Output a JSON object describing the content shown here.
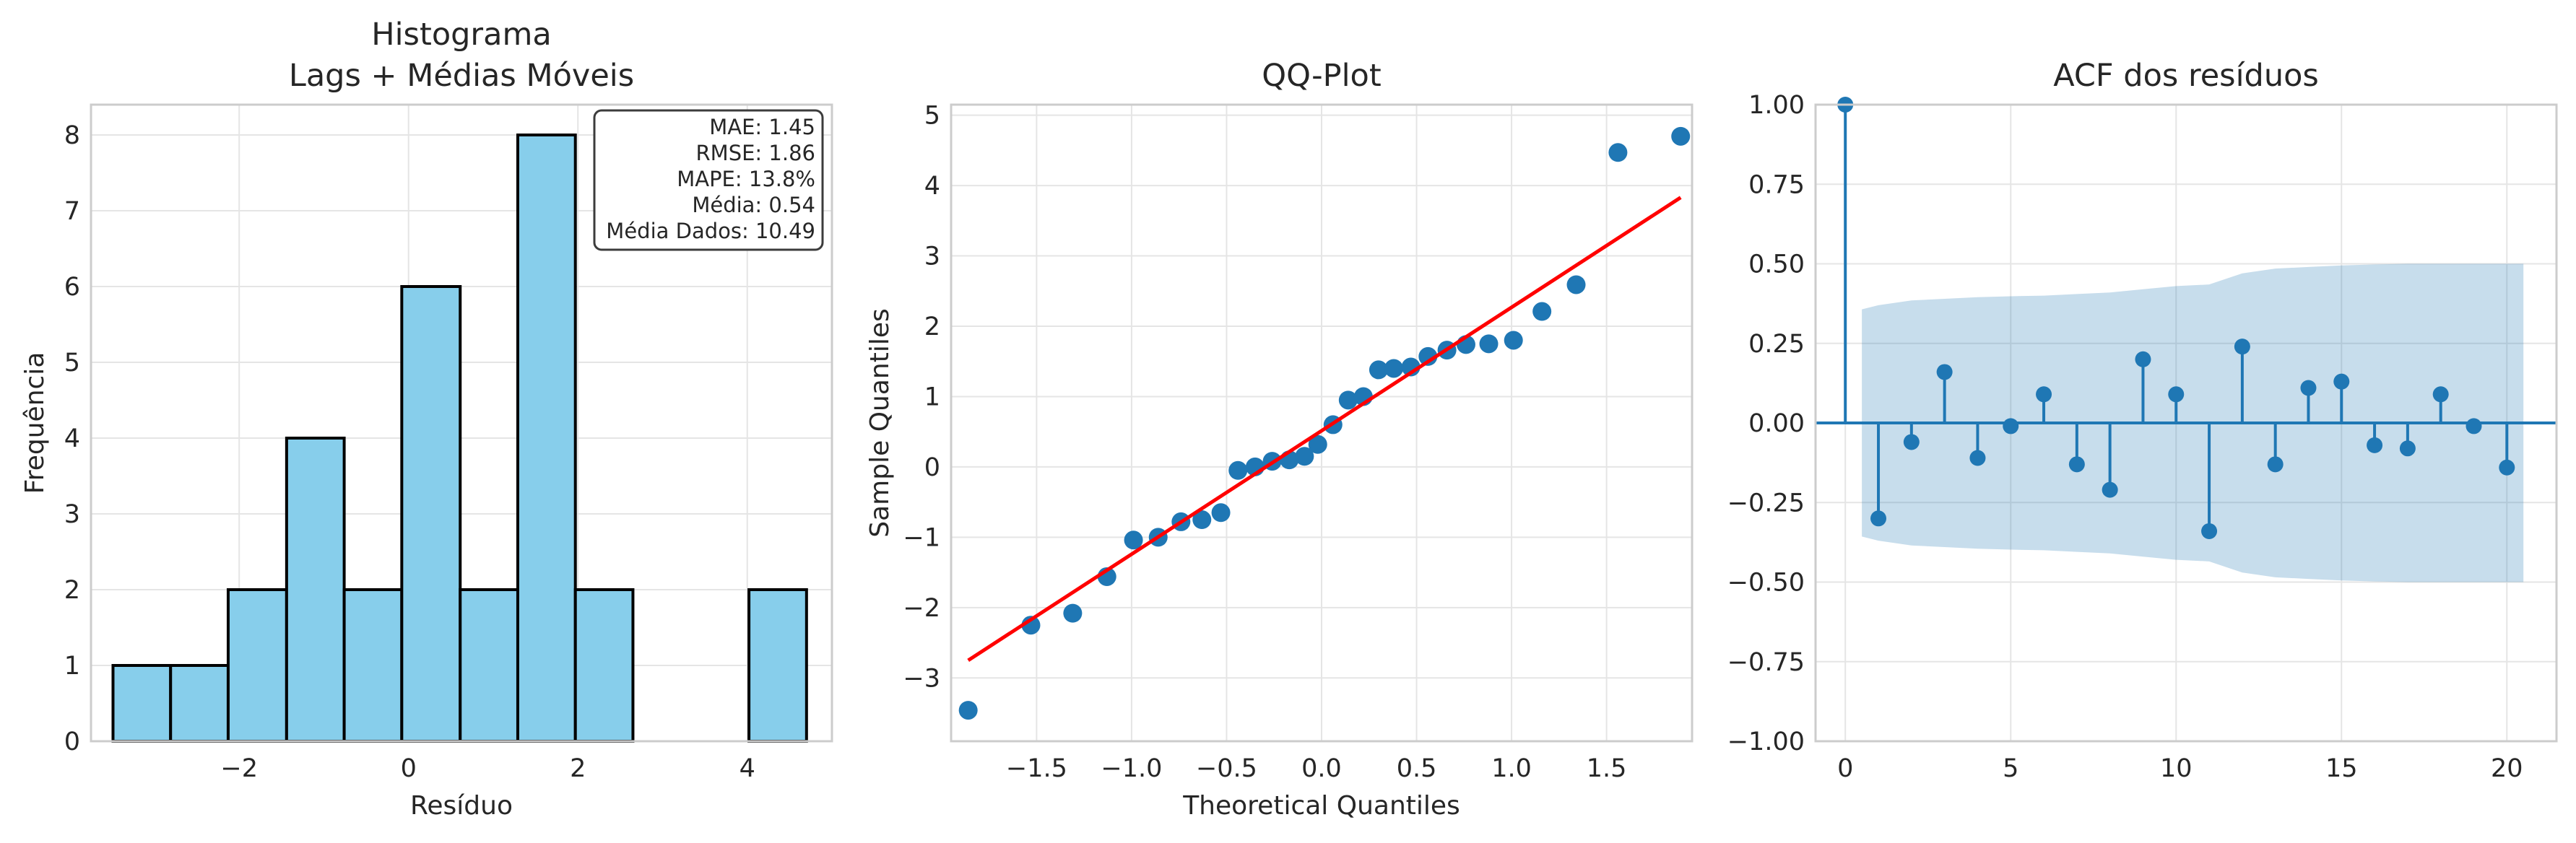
{
  "chart_data": [
    {
      "type": "bar",
      "title": "Histograma\nLags + Médias Móveis",
      "xlabel": "Resíduo",
      "ylabel": "Frequência",
      "xlim": [
        -3.75,
        5.0
      ],
      "ylim": [
        0,
        8.4
      ],
      "x_ticks": [
        -2,
        0,
        2,
        4
      ],
      "x_tick_labels": [
        "−2",
        "0",
        "2",
        "4"
      ],
      "y_ticks": [
        0,
        1,
        2,
        3,
        4,
        5,
        6,
        7,
        8
      ],
      "y_tick_labels": [
        "0",
        "1",
        "2",
        "3",
        "4",
        "5",
        "6",
        "7",
        "8"
      ],
      "bin_edges": [
        -3.49,
        -2.81,
        -2.13,
        -1.44,
        -0.76,
        -0.08,
        0.61,
        1.29,
        1.97,
        2.65,
        3.34,
        4.02,
        4.7
      ],
      "values": [
        1,
        1,
        2,
        4,
        2,
        6,
        2,
        8,
        2,
        0,
        0,
        2
      ],
      "bar_color": "#87ceeb",
      "grid": true,
      "stats_box": {
        "position": "top-right",
        "lines": [
          "MAE: 1.45",
          "RMSE: 1.86",
          "MAPE: 13.8%",
          "Média: 0.54",
          "Média Dados: 10.49"
        ]
      }
    },
    {
      "type": "scatter",
      "title": "QQ-Plot",
      "xlabel": "Theoretical Quantiles",
      "ylabel": "Sample Quantiles",
      "xlim": [
        -1.95,
        1.95
      ],
      "ylim": [
        -3.9,
        5.15
      ],
      "x_ticks": [
        -1.5,
        -1.0,
        -0.5,
        0.0,
        0.5,
        1.0,
        1.5
      ],
      "x_tick_labels": [
        "−1.5",
        "−1.0",
        "−0.5",
        "0.0",
        "0.5",
        "1.0",
        "1.5"
      ],
      "y_ticks": [
        -3,
        -2,
        -1,
        0,
        1,
        2,
        3,
        4,
        5
      ],
      "y_tick_labels": [
        "−3",
        "−2",
        "−1",
        "0",
        "1",
        "2",
        "3",
        "4",
        "5"
      ],
      "points": [
        {
          "x": -1.86,
          "y": -3.46
        },
        {
          "x": -1.53,
          "y": -2.25
        },
        {
          "x": -1.31,
          "y": -2.08
        },
        {
          "x": -1.13,
          "y": -1.56
        },
        {
          "x": -0.99,
          "y": -1.04
        },
        {
          "x": -0.86,
          "y": -1.0
        },
        {
          "x": -0.74,
          "y": -0.78
        },
        {
          "x": -0.63,
          "y": -0.75
        },
        {
          "x": -0.53,
          "y": -0.65
        },
        {
          "x": -0.44,
          "y": -0.05
        },
        {
          "x": -0.35,
          "y": 0.0
        },
        {
          "x": -0.26,
          "y": 0.08
        },
        {
          "x": -0.17,
          "y": 0.1
        },
        {
          "x": -0.09,
          "y": 0.15
        },
        {
          "x": -0.02,
          "y": 0.32
        },
        {
          "x": 0.06,
          "y": 0.6
        },
        {
          "x": 0.14,
          "y": 0.95
        },
        {
          "x": 0.22,
          "y": 1.0
        },
        {
          "x": 0.3,
          "y": 1.38
        },
        {
          "x": 0.38,
          "y": 1.4
        },
        {
          "x": 0.47,
          "y": 1.42
        },
        {
          "x": 0.56,
          "y": 1.57
        },
        {
          "x": 0.66,
          "y": 1.66
        },
        {
          "x": 0.76,
          "y": 1.74
        },
        {
          "x": 0.88,
          "y": 1.75
        },
        {
          "x": 1.01,
          "y": 1.8
        },
        {
          "x": 1.16,
          "y": 2.21
        },
        {
          "x": 1.34,
          "y": 2.59
        },
        {
          "x": 1.56,
          "y": 4.47
        },
        {
          "x": 1.89,
          "y": 4.7
        }
      ],
      "reference_line": {
        "x1": -1.86,
        "y1": -2.75,
        "x2": 1.89,
        "y2": 3.83,
        "color": "#ff0000"
      },
      "point_color": "#1f77b4",
      "grid": true
    },
    {
      "type": "stem",
      "title": "ACF dos resíduos",
      "xlim": [
        -0.9,
        21.5
      ],
      "ylim": [
        -1.0,
        1.0
      ],
      "x_ticks": [
        0,
        5,
        10,
        15,
        20
      ],
      "x_tick_labels": [
        "0",
        "5",
        "10",
        "15",
        "20"
      ],
      "y_ticks": [
        -1.0,
        -0.75,
        -0.5,
        -0.25,
        0.0,
        0.25,
        0.5,
        0.75,
        1.0
      ],
      "y_tick_labels": [
        "−1.00",
        "−0.75",
        "−0.50",
        "−0.25",
        "0.00",
        "0.25",
        "0.50",
        "0.75",
        "1.00"
      ],
      "lags": [
        0,
        1,
        2,
        3,
        4,
        5,
        6,
        7,
        8,
        9,
        10,
        11,
        12,
        13,
        14,
        15,
        16,
        17,
        18,
        19,
        20
      ],
      "values": [
        1.0,
        -0.3,
        -0.06,
        0.16,
        -0.11,
        -0.01,
        0.09,
        -0.13,
        -0.21,
        0.2,
        0.09,
        -0.34,
        0.24,
        -0.13,
        0.11,
        0.13,
        -0.07,
        -0.08,
        0.09,
        -0.01,
        -0.14
      ],
      "confidence_band": {
        "lags": [
          0.5,
          1,
          2,
          3,
          4,
          5,
          6,
          7,
          8,
          9,
          10,
          11,
          12,
          13,
          14,
          15,
          16,
          17,
          18,
          19,
          20,
          20.5
        ],
        "upper": [
          0.357,
          0.37,
          0.385,
          0.39,
          0.395,
          0.398,
          0.4,
          0.405,
          0.41,
          0.42,
          0.43,
          0.435,
          0.47,
          0.485,
          0.49,
          0.495,
          0.498,
          0.5,
          0.5,
          0.5,
          0.5,
          0.5
        ],
        "color": "#1f77b4"
      },
      "stem_color": "#1f77b4",
      "grid": true
    }
  ]
}
